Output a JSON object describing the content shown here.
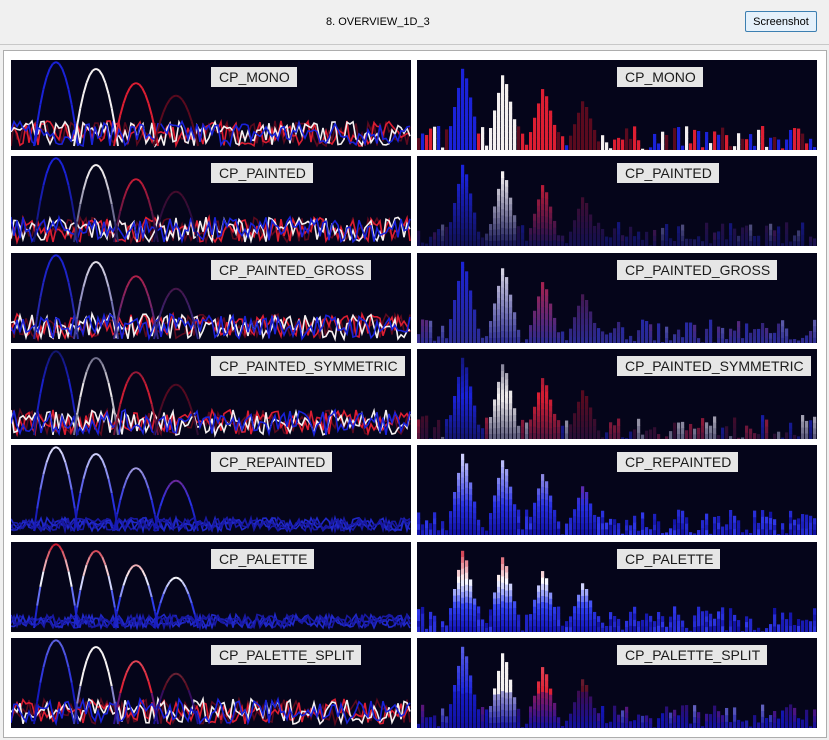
{
  "window": {
    "title": "8. OVERVIEW_1D_3"
  },
  "toolbar": {
    "screenshot_label": "Screenshot"
  },
  "rows": [
    {
      "label": "CP_MONO",
      "mode": "mono"
    },
    {
      "label": "CP_PAINTED",
      "mode": "painted"
    },
    {
      "label": "CP_PAINTED_GROSS",
      "mode": "gross"
    },
    {
      "label": "CP_PAINTED_SYMMETRIC",
      "mode": "symmetric"
    },
    {
      "label": "CP_REPAINTED",
      "mode": "repainted"
    },
    {
      "label": "CP_PALETTE",
      "mode": "palette"
    },
    {
      "label": "CP_PALETTE_SPLIT",
      "mode": "split"
    }
  ],
  "colors": {
    "panel_bg": "#05051a",
    "blue": "#1a22d8",
    "white": "#f4f0f0",
    "red": "#dc1e32",
    "dark_red": "#5a0a1e"
  },
  "chart_data": {
    "type": "line",
    "x": [
      0,
      1
    ],
    "title": "",
    "series": [
      {
        "peak_height": 1.0
      },
      {
        "peak_height": 0.92
      },
      {
        "peak_height": 0.75
      },
      {
        "peak_height": 0.6
      }
    ]
  }
}
